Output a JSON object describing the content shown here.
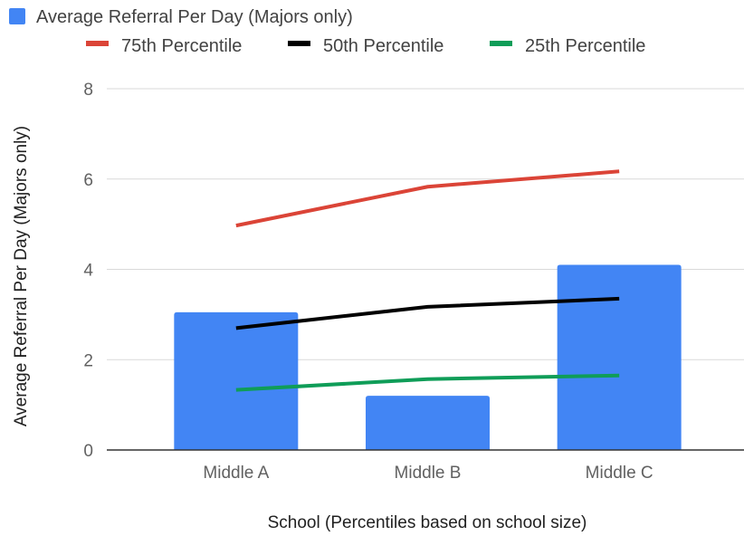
{
  "chart_data": {
    "type": "bar",
    "categories": [
      "Middle A",
      "Middle B",
      "Middle C"
    ],
    "series": [
      {
        "name": "Average Referral Per Day (Majors only)",
        "kind": "bar",
        "color": "#4285f4",
        "values": [
          3.05,
          1.2,
          4.1
        ]
      },
      {
        "name": "75th Percentile",
        "kind": "line",
        "color": "#db4437",
        "values": [
          4.97,
          5.83,
          6.17
        ]
      },
      {
        "name": "50th Percentile",
        "kind": "line",
        "color": "#000000",
        "values": [
          2.7,
          3.17,
          3.35
        ]
      },
      {
        "name": "25th Percentile",
        "kind": "line",
        "color": "#0f9d58",
        "values": [
          1.33,
          1.57,
          1.65
        ]
      }
    ],
    "xlabel": "School (Percentiles based on school size)",
    "ylabel": "Average Referral Per Day (Majors only)",
    "ylim": [
      0,
      8
    ],
    "yticks": [
      "0",
      "2",
      "4",
      "6",
      "8"
    ],
    "grid": true,
    "legend_position": "top"
  }
}
